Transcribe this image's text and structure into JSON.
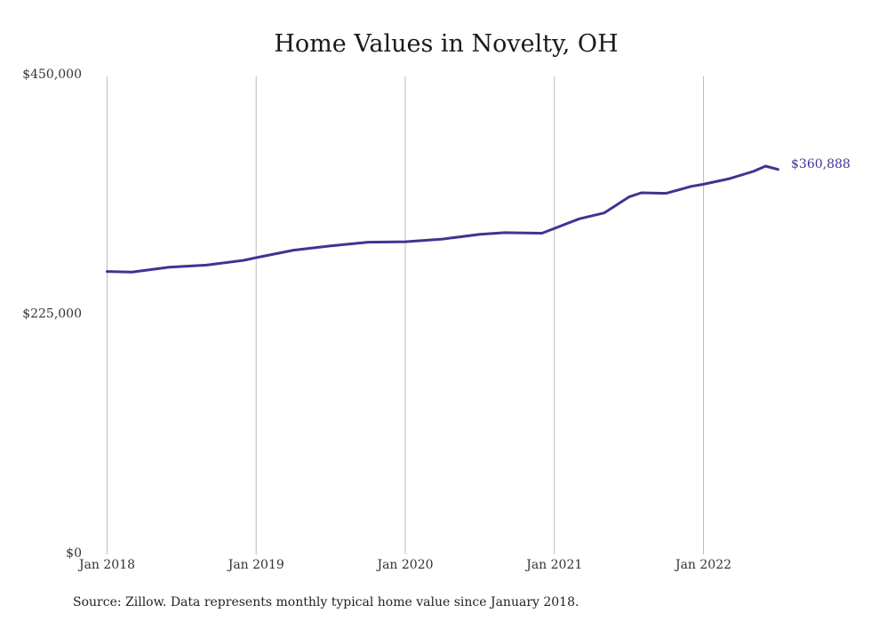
{
  "chart_data": {
    "type": "line",
    "title": "Home Values in Novelty, OH",
    "xlabel": "",
    "ylabel": "",
    "x_ticks": [
      "Jan 2018",
      "Jan 2019",
      "Jan 2020",
      "Jan 2021",
      "Jan 2022"
    ],
    "y_ticks": [
      "$0",
      "$225,000",
      "$450,000"
    ],
    "y_tick_values": [
      0,
      225000,
      450000
    ],
    "ylim": [
      0,
      450000
    ],
    "xlim": [
      "2017-12",
      "2022-09"
    ],
    "grid": "vertical",
    "series": [
      {
        "color": "#3d3592",
        "x": [
          "2018-01",
          "2018-03",
          "2018-06",
          "2018-09",
          "2018-12",
          "2019-01",
          "2019-04",
          "2019-07",
          "2019-10",
          "2020-01",
          "2020-04",
          "2020-07",
          "2020-09",
          "2020-12",
          "2021-01",
          "2021-03",
          "2021-05",
          "2021-07",
          "2021-08",
          "2021-10",
          "2021-12",
          "2022-01",
          "2022-03",
          "2022-05",
          "2022-06",
          "2022-07"
        ],
        "values": [
          265000,
          264500,
          269000,
          271000,
          275500,
          278000,
          285000,
          289000,
          292500,
          293000,
          295500,
          300000,
          301500,
          301000,
          305500,
          314500,
          320000,
          335000,
          339000,
          338500,
          345000,
          347000,
          352000,
          359000,
          364000,
          360888
        ]
      }
    ],
    "end_label": "$360,888"
  },
  "source_note": "Source: Zillow. Data represents monthly typical home value since January 2018."
}
